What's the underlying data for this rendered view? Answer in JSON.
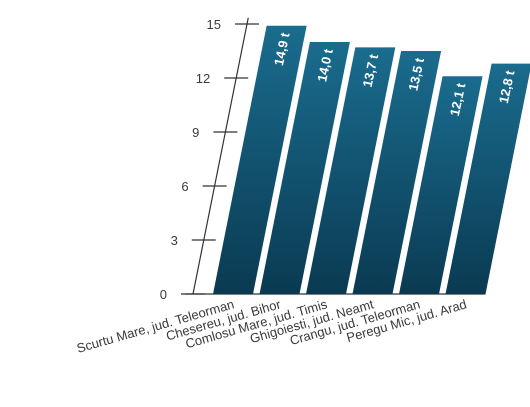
{
  "chart_data": {
    "type": "bar",
    "categories": [
      "Scurtu Mare, jud. Teleorman",
      "Chesereu, jud. Bihor",
      "Comlosu Mare, jud. Timis",
      "Ghigoiesti, jud. Neamt",
      "Crangu, jud. Teleorman",
      "Peregu Mic, jud. Arad"
    ],
    "values": [
      14.9,
      14.0,
      13.7,
      13.5,
      12.1,
      12.8
    ],
    "data_labels": [
      "14,9 t",
      "14,0 t",
      "13,7 t",
      "13,5 t",
      "12,1 t",
      "12,8 t"
    ],
    "yticks": [
      0,
      3,
      6,
      9,
      12,
      15
    ],
    "ylim": [
      0,
      15
    ],
    "title": "",
    "xlabel": "",
    "ylabel": "",
    "grid": false,
    "legend": "none",
    "colors": {
      "bar_top": "#1a6c8e",
      "bar_bottom": "#0a3a52",
      "axis": "#333333",
      "text": "#3a3a3a"
    }
  }
}
